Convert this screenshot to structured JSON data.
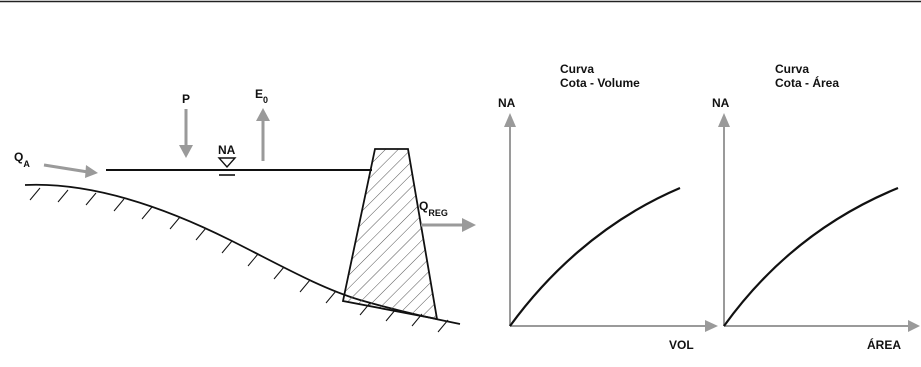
{
  "reservoir": {
    "inflow_label": "Q",
    "inflow_sub": "A",
    "precip_label": "P",
    "evap_label": "E",
    "evap_sub": "0",
    "water_level_label": "NA",
    "outflow_label": "Q",
    "outflow_sub": "REG"
  },
  "chart_volume": {
    "title_line1": "Curva",
    "title_line2": "Cota - Volume",
    "y_label": "NA",
    "x_label": "VOL"
  },
  "chart_area": {
    "title_line1": "Curva",
    "title_line2": "Cota - Área",
    "y_label": "NA",
    "x_label": "ÁREA"
  },
  "colors": {
    "arrow": "#9a9a9a",
    "line": "#111111",
    "hatch": "#555555"
  }
}
